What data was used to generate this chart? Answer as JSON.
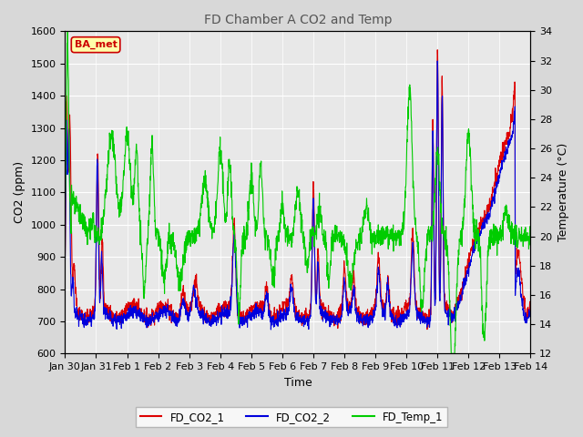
{
  "title": "FD Chamber A CO2 and Temp",
  "xlabel": "Time",
  "ylabel_left": "CO2 (ppm)",
  "ylabel_right": "Temperature (°C)",
  "ylim_left": [
    600,
    1600
  ],
  "ylim_right": [
    12,
    34
  ],
  "yticks_left": [
    600,
    700,
    800,
    900,
    1000,
    1100,
    1200,
    1300,
    1400,
    1500,
    1600
  ],
  "yticks_right": [
    12,
    14,
    16,
    18,
    20,
    22,
    24,
    26,
    28,
    30,
    32,
    34
  ],
  "color_co2_1": "#dd0000",
  "color_co2_2": "#0000dd",
  "color_temp": "#00cc00",
  "legend_label_1": "FD_CO2_1",
  "legend_label_2": "FD_CO2_2",
  "legend_label_3": "FD_Temp_1",
  "annotation_text": "BA_met",
  "annotation_bg": "#ffffaa",
  "annotation_border": "#cc0000",
  "background_color": "#d8d8d8",
  "plot_bg": "#e8e8e8",
  "x_tick_labels": [
    "Jan 30",
    "Jan 31",
    "Feb 1",
    "Feb 2",
    "Feb 3",
    "Feb 4",
    "Feb 5",
    "Feb 6",
    "Feb 7",
    "Feb 8",
    "Feb 9",
    "Feb 10",
    "Feb 11",
    "Feb 12",
    "Feb 13",
    "Feb 14"
  ],
  "figwidth": 6.4,
  "figheight": 4.8,
  "dpi": 100
}
